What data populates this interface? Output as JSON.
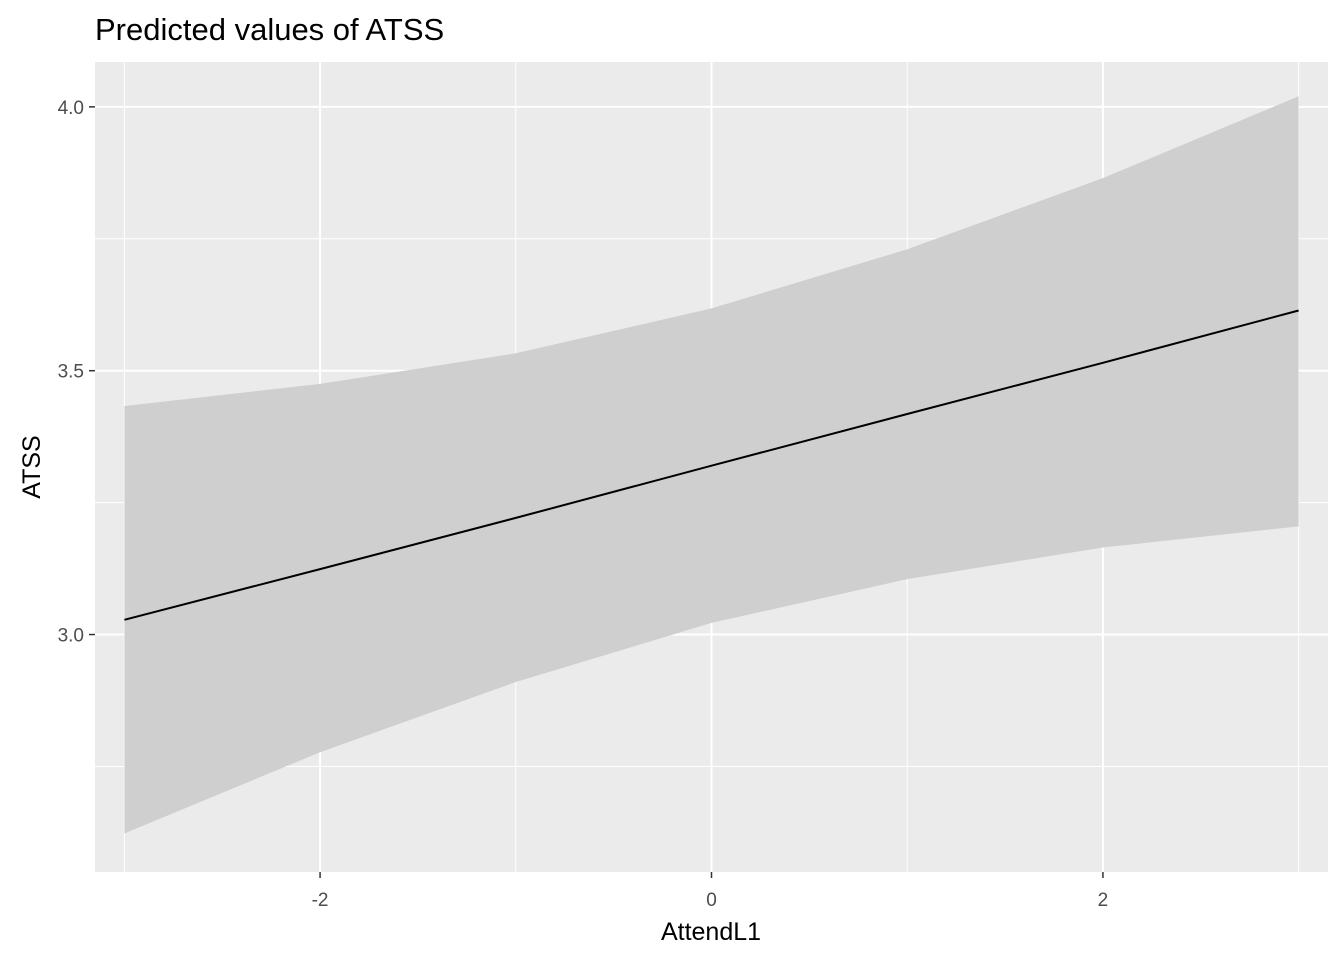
{
  "chart_data": {
    "type": "line",
    "title": "Predicted values of ATSS",
    "xlabel": "AttendL1",
    "ylabel": "ATSS",
    "xlim": [
      -3.15,
      3.15
    ],
    "ylim": [
      2.55,
      4.085
    ],
    "x_ticks": [
      -2,
      0,
      2
    ],
    "x_tick_labels": [
      "-2",
      "0",
      "2"
    ],
    "x_minor_ticks": [
      -3,
      -1,
      1,
      3
    ],
    "y_ticks": [
      3.0,
      3.5,
      4.0
    ],
    "y_tick_labels": [
      "3.0",
      "3.5",
      "4.0"
    ],
    "y_minor_ticks": [
      2.75,
      3.25,
      3.75
    ],
    "grid": true,
    "legend": "none",
    "colors": {
      "panel": "#ebebeb",
      "grid": "#ffffff",
      "ribbon": "#cfcfcf",
      "line": "#000000"
    },
    "series": [
      {
        "x": [
          -3,
          -2,
          -1,
          0,
          1,
          2,
          3
        ],
        "predicted": [
          3.028,
          3.124,
          3.221,
          3.32,
          3.418,
          3.515,
          3.614
        ],
        "conf_low": [
          2.623,
          2.777,
          2.91,
          3.022,
          3.105,
          3.165,
          3.205
        ],
        "conf_high": [
          3.433,
          3.475,
          3.533,
          3.618,
          3.73,
          3.865,
          4.02
        ]
      }
    ]
  }
}
